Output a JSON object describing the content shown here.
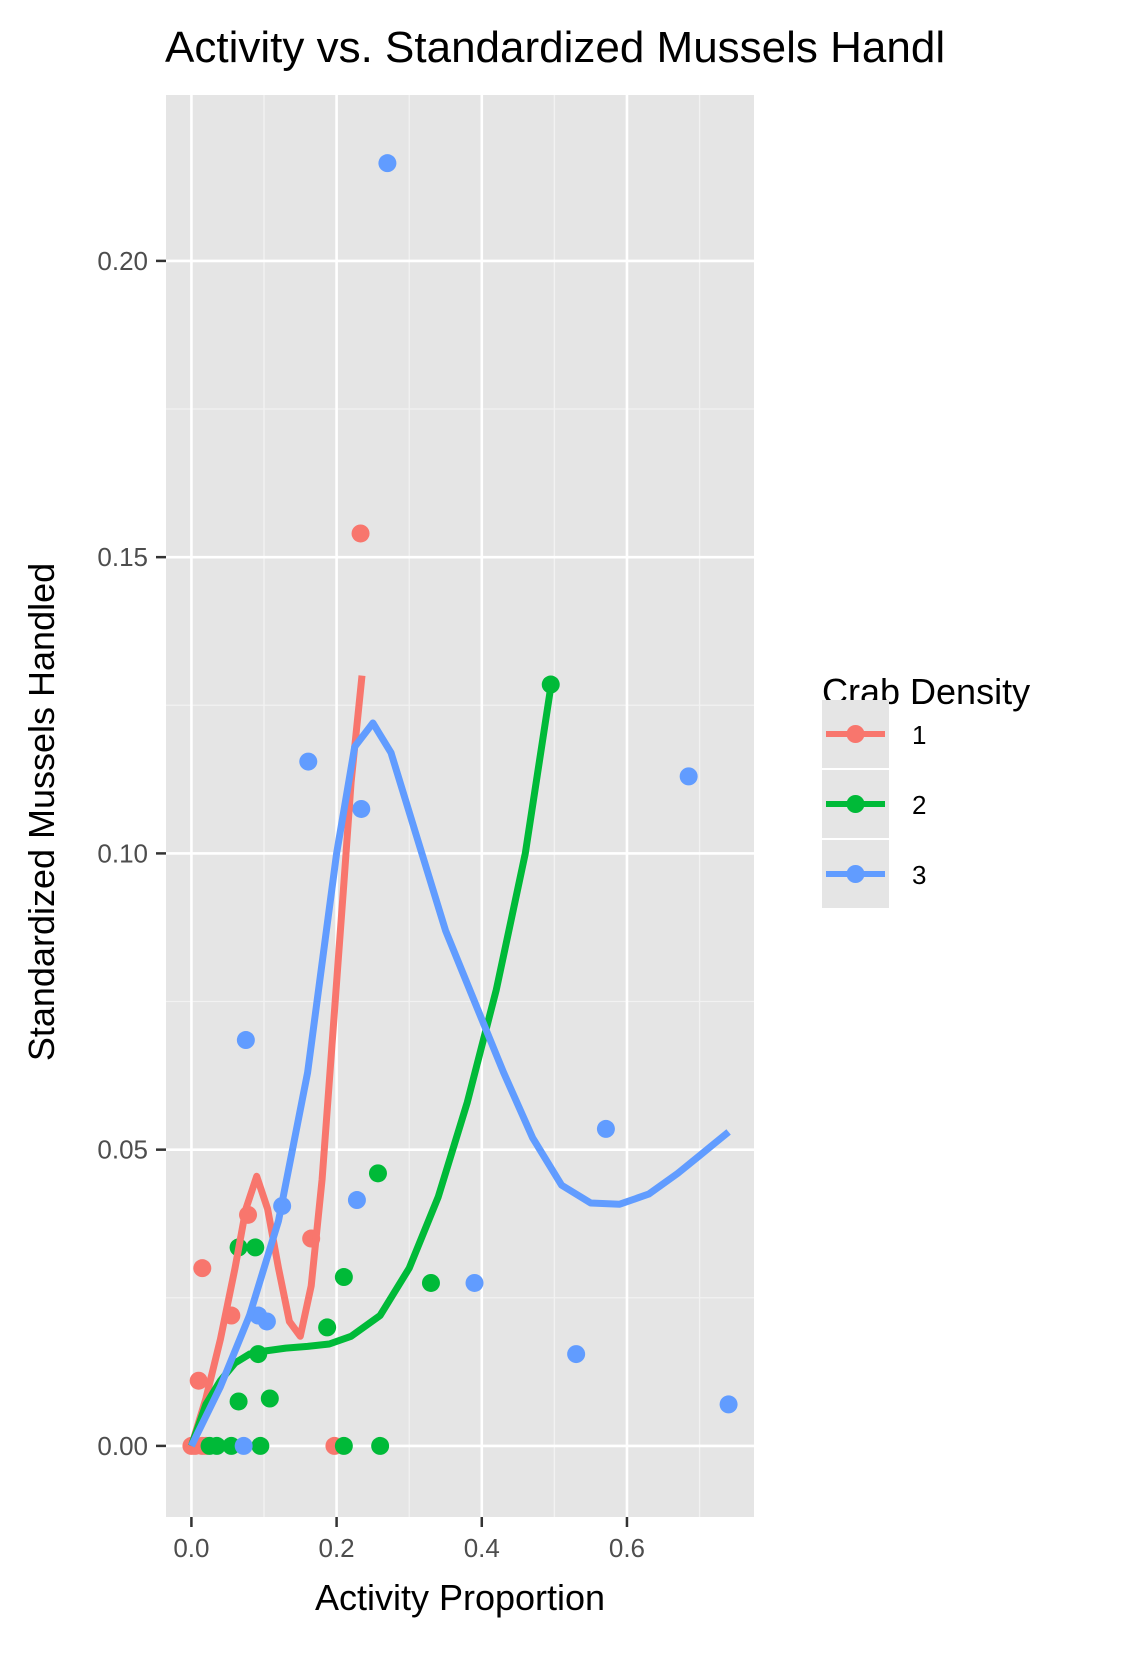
{
  "chart_data": {
    "type": "scatter",
    "title": "Activity vs. Standardized Mussels Handl",
    "xlabel": "Activity Proportion",
    "ylabel": "Standardized Mussels Handled",
    "xlim": [
      -0.035,
      0.775
    ],
    "ylim": [
      -0.012,
      0.228
    ],
    "x_ticks": [
      0.0,
      0.2,
      0.4,
      0.6
    ],
    "x_tick_labels": [
      "0.0",
      "0.2",
      "0.4",
      "0.6"
    ],
    "y_ticks": [
      0.0,
      0.05,
      0.1,
      0.15,
      0.2
    ],
    "y_tick_labels": [
      "0.00",
      "0.05",
      "0.10",
      "0.15",
      "0.20"
    ],
    "grid": true,
    "panel_background": "#e5e5e5",
    "legend": {
      "title": "Crab Density",
      "position": "right",
      "entries": [
        "1",
        "2",
        "3"
      ]
    },
    "series": [
      {
        "name": "1",
        "color": "#f8766d",
        "points": [
          [
            0.0,
            0.0
          ],
          [
            0.005,
            0.0
          ],
          [
            0.015,
            0.0
          ],
          [
            0.02,
            0.0
          ],
          [
            0.01,
            0.011
          ],
          [
            0.015,
            0.03
          ],
          [
            0.055,
            0.022
          ],
          [
            0.078,
            0.039
          ],
          [
            0.165,
            0.035
          ],
          [
            0.197,
            0.0
          ],
          [
            0.233,
            0.154
          ]
        ],
        "smooth": [
          [
            0.0,
            0.0
          ],
          [
            0.02,
            0.008
          ],
          [
            0.04,
            0.018
          ],
          [
            0.06,
            0.03
          ],
          [
            0.075,
            0.04
          ],
          [
            0.09,
            0.0455
          ],
          [
            0.105,
            0.04
          ],
          [
            0.12,
            0.03
          ],
          [
            0.135,
            0.021
          ],
          [
            0.15,
            0.0185
          ],
          [
            0.165,
            0.027
          ],
          [
            0.18,
            0.045
          ],
          [
            0.195,
            0.07
          ],
          [
            0.21,
            0.095
          ],
          [
            0.22,
            0.112
          ],
          [
            0.235,
            0.13
          ]
        ]
      },
      {
        "name": "2",
        "color": "#00ba38",
        "points": [
          [
            0.025,
            0.0
          ],
          [
            0.035,
            0.0
          ],
          [
            0.055,
            0.0
          ],
          [
            0.095,
            0.0
          ],
          [
            0.21,
            0.0
          ],
          [
            0.26,
            0.0
          ],
          [
            0.065,
            0.0075
          ],
          [
            0.108,
            0.008
          ],
          [
            0.092,
            0.0155
          ],
          [
            0.187,
            0.02
          ],
          [
            0.21,
            0.0285
          ],
          [
            0.33,
            0.0275
          ],
          [
            0.065,
            0.0335
          ],
          [
            0.088,
            0.0335
          ],
          [
            0.257,
            0.046
          ],
          [
            0.495,
            0.1285
          ]
        ],
        "smooth": [
          [
            0.0,
            0.0
          ],
          [
            0.02,
            0.007
          ],
          [
            0.04,
            0.011
          ],
          [
            0.06,
            0.014
          ],
          [
            0.08,
            0.0155
          ],
          [
            0.1,
            0.016
          ],
          [
            0.13,
            0.0165
          ],
          [
            0.16,
            0.0168
          ],
          [
            0.19,
            0.0172
          ],
          [
            0.22,
            0.0185
          ],
          [
            0.26,
            0.022
          ],
          [
            0.3,
            0.03
          ],
          [
            0.34,
            0.042
          ],
          [
            0.38,
            0.058
          ],
          [
            0.42,
            0.077
          ],
          [
            0.46,
            0.1
          ],
          [
            0.495,
            0.128
          ]
        ]
      },
      {
        "name": "3",
        "color": "#619cff",
        "points": [
          [
            0.072,
            0.0
          ],
          [
            0.075,
            0.0685
          ],
          [
            0.092,
            0.022
          ],
          [
            0.104,
            0.021
          ],
          [
            0.125,
            0.0405
          ],
          [
            0.161,
            0.1155
          ],
          [
            0.228,
            0.0415
          ],
          [
            0.234,
            0.1075
          ],
          [
            0.27,
            0.2165
          ],
          [
            0.39,
            0.0275
          ],
          [
            0.53,
            0.0155
          ],
          [
            0.571,
            0.0535
          ],
          [
            0.685,
            0.113
          ],
          [
            0.74,
            0.007
          ]
        ],
        "smooth": [
          [
            0.0,
            0.0
          ],
          [
            0.04,
            0.01
          ],
          [
            0.08,
            0.022
          ],
          [
            0.12,
            0.038
          ],
          [
            0.16,
            0.063
          ],
          [
            0.2,
            0.1
          ],
          [
            0.225,
            0.118
          ],
          [
            0.25,
            0.122
          ],
          [
            0.275,
            0.117
          ],
          [
            0.31,
            0.103
          ],
          [
            0.35,
            0.087
          ],
          [
            0.39,
            0.075
          ],
          [
            0.43,
            0.063
          ],
          [
            0.47,
            0.052
          ],
          [
            0.51,
            0.044
          ],
          [
            0.55,
            0.041
          ],
          [
            0.59,
            0.0408
          ],
          [
            0.63,
            0.0425
          ],
          [
            0.67,
            0.046
          ],
          [
            0.7,
            0.049
          ],
          [
            0.74,
            0.053
          ]
        ]
      }
    ]
  }
}
